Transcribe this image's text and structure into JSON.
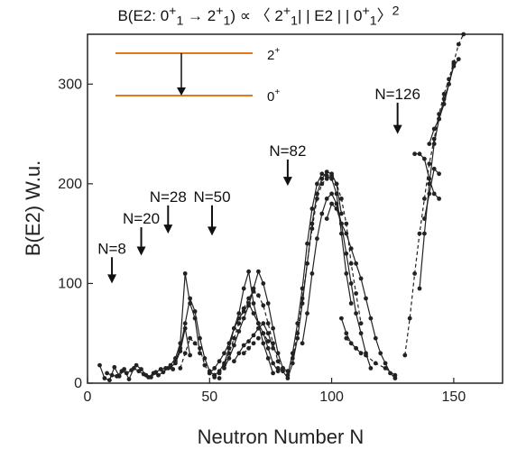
{
  "chart_data": {
    "type": "line",
    "title_parts": {
      "prefix": "B(E2: 0",
      "s1": "+",
      "b1": "1",
      "arrow": " → 2",
      "s2": "+",
      "b2": "1",
      "mid": ") ∝ 〈 2",
      "s3": "+",
      "b3": "1",
      "mid2": "| | E2 | | 0",
      "s4": "+",
      "b4": "1",
      "close": "〉",
      "sup2": "2"
    },
    "xlabel": "Neutron Number N",
    "ylabel": "B(E2) W.u.",
    "xlim": [
      0,
      170
    ],
    "ylim": [
      0,
      350
    ],
    "x_ticks": [
      0,
      50,
      100,
      150
    ],
    "y_ticks": [
      0,
      100,
      200,
      300
    ],
    "grid": false,
    "line_color": "#222222",
    "level_color": "#e07a1f",
    "inset_levels": [
      {
        "label_base": "2",
        "label_sup": "+"
      },
      {
        "label_base": "0",
        "label_sup": "+"
      }
    ],
    "annotations": [
      {
        "text": "N=8",
        "x": 10,
        "y": 130,
        "arrow_to": 100
      },
      {
        "text": "N=20",
        "x": 22,
        "y": 160,
        "arrow_to": 128
      },
      {
        "text": "N=28",
        "x": 33,
        "y": 182,
        "arrow_to": 150
      },
      {
        "text": "N=50",
        "x": 51,
        "y": 182,
        "arrow_to": 148
      },
      {
        "text": "N=82",
        "x": 82,
        "y": 228,
        "arrow_to": 198
      },
      {
        "text": "N=126",
        "x": 127,
        "y": 285,
        "arrow_to": 250
      }
    ],
    "series": [
      {
        "x": [
          5,
          7,
          9,
          11,
          13,
          15,
          17,
          19,
          21,
          23,
          25,
          27,
          29,
          31,
          33,
          35
        ],
        "values": [
          18,
          5,
          3,
          16,
          7,
          14,
          4,
          15,
          12,
          9,
          6,
          10,
          8,
          11,
          15,
          14
        ],
        "dashed": false
      },
      {
        "x": [
          8,
          10,
          12,
          14,
          16,
          18,
          20,
          22,
          24,
          26,
          28,
          30,
          32,
          34,
          36,
          38,
          40,
          42
        ],
        "values": [
          10,
          8,
          7,
          12,
          10,
          13,
          18,
          14,
          8,
          6,
          11,
          14,
          15,
          16,
          20,
          32,
          55,
          28
        ],
        "dashed": false
      },
      {
        "x": [
          34,
          36,
          38,
          40,
          42,
          44,
          46
        ],
        "values": [
          18,
          25,
          40,
          110,
          80,
          65,
          30
        ],
        "dashed": false
      },
      {
        "x": [
          36,
          38,
          40,
          42,
          44,
          46,
          48,
          50,
          52
        ],
        "values": [
          22,
          35,
          60,
          85,
          72,
          45,
          25,
          12,
          8
        ],
        "dashed": false
      },
      {
        "x": [
          38,
          40,
          42,
          44,
          46,
          48,
          50,
          52,
          54
        ],
        "values": [
          15,
          30,
          45,
          40,
          35,
          18,
          10,
          6,
          5
        ],
        "dashed": true
      },
      {
        "x": [
          50,
          52,
          54,
          56,
          58,
          60,
          62,
          64,
          66,
          68,
          70,
          72,
          74,
          76
        ],
        "values": [
          10,
          15,
          22,
          30,
          40,
          55,
          70,
          95,
          112,
          80,
          60,
          40,
          25,
          10
        ],
        "dashed": false
      },
      {
        "x": [
          52,
          54,
          56,
          58,
          60,
          62,
          64,
          66,
          68,
          70,
          72,
          74,
          76,
          78
        ],
        "values": [
          8,
          12,
          20,
          35,
          55,
          65,
          72,
          80,
          70,
          60,
          50,
          35,
          20,
          12
        ],
        "dashed": false
      },
      {
        "x": [
          54,
          56,
          58,
          60,
          62,
          64,
          66,
          68,
          70,
          72,
          74,
          76,
          78,
          80
        ],
        "values": [
          10,
          18,
          30,
          45,
          60,
          75,
          85,
          92,
          88,
          78,
          60,
          40,
          22,
          15
        ],
        "dashed": true
      },
      {
        "x": [
          56,
          58,
          60,
          62,
          64,
          66,
          68,
          70,
          72,
          74,
          76,
          78,
          80,
          82
        ],
        "values": [
          15,
          25,
          38,
          52,
          65,
          78,
          95,
          112,
          100,
          80,
          55,
          30,
          15,
          12
        ],
        "dashed": false
      },
      {
        "x": [
          60,
          62,
          64,
          66,
          68,
          70,
          72,
          74,
          76
        ],
        "values": [
          22,
          30,
          38,
          42,
          48,
          55,
          60,
          50,
          35
        ],
        "dashed": false
      },
      {
        "x": [
          64,
          66,
          68,
          70,
          72,
          74
        ],
        "values": [
          30,
          35,
          40,
          45,
          50,
          42
        ],
        "dashed": true
      },
      {
        "x": [
          78,
          80,
          82,
          84,
          86,
          88,
          90,
          92,
          94,
          96,
          98,
          100,
          102,
          104
        ],
        "values": [
          15,
          12,
          5,
          20,
          45,
          80,
          120,
          160,
          190,
          205,
          212,
          210,
          200,
          170
        ],
        "dashed": false
      },
      {
        "x": [
          82,
          84,
          86,
          88,
          90,
          92,
          94,
          96,
          98,
          100,
          102,
          104,
          106,
          108
        ],
        "values": [
          8,
          30,
          60,
          95,
          140,
          175,
          200,
          210,
          208,
          205,
          190,
          150,
          110,
          80
        ],
        "dashed": false
      },
      {
        "x": [
          84,
          86,
          88,
          90,
          92,
          94,
          96,
          98,
          100,
          102,
          104,
          106,
          108,
          110,
          112
        ],
        "values": [
          25,
          50,
          85,
          120,
          155,
          185,
          200,
          205,
          208,
          200,
          185,
          160,
          120,
          90,
          60
        ],
        "dashed": true
      },
      {
        "x": [
          88,
          90,
          92,
          94,
          96,
          98,
          100,
          102,
          104,
          106,
          108,
          110,
          112,
          114,
          116
        ],
        "values": [
          40,
          70,
          110,
          145,
          170,
          185,
          190,
          180,
          160,
          130,
          100,
          70,
          50,
          30,
          15
        ],
        "dashed": false
      },
      {
        "x": [
          98,
          100,
          102,
          104,
          106,
          108,
          110,
          112,
          114,
          116,
          118,
          120,
          122,
          124,
          126
        ],
        "values": [
          165,
          180,
          175,
          160,
          150,
          135,
          120,
          105,
          85,
          65,
          45,
          30,
          20,
          10,
          5
        ],
        "dashed": false
      },
      {
        "x": [
          104,
          106,
          108,
          110,
          112
        ],
        "values": [
          65,
          50,
          40,
          35,
          30
        ],
        "dashed": false
      },
      {
        "x": [
          106,
          110,
          114,
          118,
          122,
          126
        ],
        "values": [
          45,
          35,
          28,
          20,
          15,
          8
        ],
        "dashed": true
      },
      {
        "x": [
          130,
          132,
          134,
          136,
          138,
          140,
          142,
          144,
          146,
          148,
          150,
          152,
          154
        ],
        "values": [
          28,
          65,
          110,
          150,
          185,
          220,
          245,
          270,
          290,
          305,
          322,
          340,
          350
        ],
        "dashed": true
      },
      {
        "x": [
          134,
          136,
          138,
          140,
          142,
          144
        ],
        "values": [
          230,
          230,
          225,
          205,
          190,
          185
        ],
        "dashed": false
      },
      {
        "x": [
          136,
          138,
          140,
          142,
          144,
          146,
          148,
          150,
          152
        ],
        "values": [
          95,
          150,
          200,
          240,
          265,
          280,
          300,
          318,
          325
        ],
        "dashed": false
      },
      {
        "x": [
          138,
          140,
          142,
          144
        ],
        "values": [
          165,
          190,
          215,
          210
        ],
        "dashed": false
      },
      {
        "x": [
          140,
          142,
          144,
          146,
          148,
          150
        ],
        "values": [
          240,
          255,
          265,
          285,
          300,
          320
        ],
        "dashed": false
      }
    ]
  }
}
